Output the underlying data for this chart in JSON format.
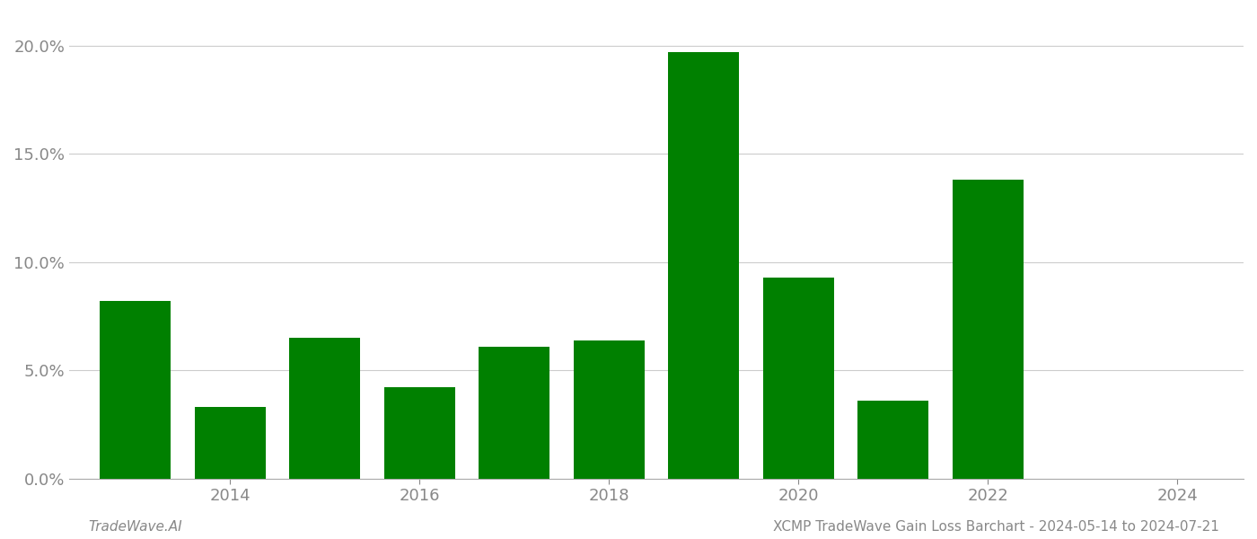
{
  "years": [
    2013,
    2014,
    2015,
    2016,
    2017,
    2018,
    2019,
    2020,
    2021,
    2022,
    2023
  ],
  "values": [
    0.082,
    0.033,
    0.065,
    0.042,
    0.061,
    0.064,
    0.197,
    0.093,
    0.036,
    0.138,
    0.0
  ],
  "bar_color": "#008000",
  "background_color": "#ffffff",
  "ylim": [
    0,
    0.215
  ],
  "yticks": [
    0.0,
    0.05,
    0.1,
    0.15,
    0.2
  ],
  "xtick_positions": [
    2014,
    2016,
    2018,
    2020,
    2022,
    2024
  ],
  "xtick_labels": [
    "2014",
    "2016",
    "2018",
    "2020",
    "2022",
    "2024"
  ],
  "footer_left": "TradeWave.AI",
  "footer_right": "XCMP TradeWave Gain Loss Barchart - 2024-05-14 to 2024-07-21",
  "grid_color": "#cccccc",
  "axis_color": "#aaaaaa",
  "tick_color": "#888888",
  "font_size_ticks": 13,
  "font_size_footer": 11
}
